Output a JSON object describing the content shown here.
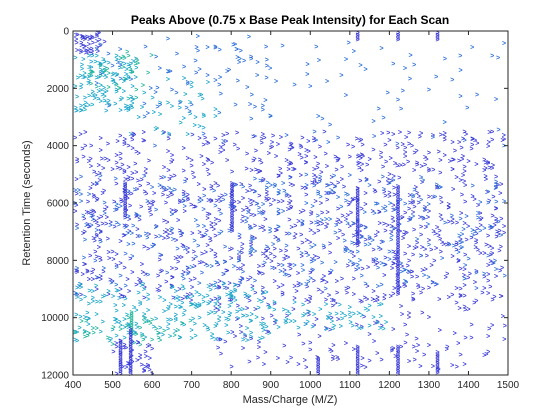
{
  "chart_data": {
    "type": "scatter",
    "title": "Peaks Above (0.75 x Base Peak Intensity) for Each Scan",
    "xlabel": "Mass/Charge (M/Z)",
    "ylabel": "Retention Time (seconds)",
    "xlim": [
      400,
      1500
    ],
    "ylim": [
      0,
      12000
    ],
    "y_reversed": true,
    "grid": false,
    "marker": ">",
    "x_ticks": [
      "400",
      "500",
      "600",
      "700",
      "800",
      "900",
      "1000",
      "1100",
      "1200",
      "1300",
      "1400",
      "1500"
    ],
    "y_ticks": [
      "0",
      "2000",
      "4000",
      "6000",
      "8000",
      "10000",
      "12000"
    ],
    "colors": {
      "blue": "#3a3bd6",
      "mid_blue": "#2b6fd8",
      "cyan": "#1aa6c9",
      "teal": "#22b59a",
      "green": "#39c07a"
    },
    "clusters": [
      {
        "x": [
          400,
          480
        ],
        "y": [
          0,
          800
        ],
        "n": 45,
        "c": "blue"
      },
      {
        "x": [
          400,
          560
        ],
        "y": [
          800,
          2800
        ],
        "n": 120,
        "c": "cyan"
      },
      {
        "x": [
          440,
          600
        ],
        "y": [
          600,
          2400
        ],
        "n": 35,
        "c": "teal"
      },
      {
        "x": [
          540,
          760
        ],
        "y": [
          1500,
          3600
        ],
        "n": 40,
        "c": "cyan"
      },
      {
        "x": [
          460,
          900
        ],
        "y": [
          0,
          3000
        ],
        "n": 60,
        "c": "mid_blue"
      },
      {
        "x": [
          600,
          1500
        ],
        "y": [
          400,
          4000
        ],
        "n": 90,
        "c": "mid_blue"
      },
      {
        "x": [
          400,
          1500
        ],
        "y": [
          3500,
          9400
        ],
        "n": 1100,
        "c": "blue"
      },
      {
        "x": [
          400,
          1500
        ],
        "y": [
          5000,
          9000
        ],
        "n": 380,
        "c": "mid_blue"
      },
      {
        "x": [
          400,
          900
        ],
        "y": [
          8800,
          10800
        ],
        "n": 220,
        "c": "cyan"
      },
      {
        "x": [
          760,
          1500
        ],
        "y": [
          9200,
          11800
        ],
        "n": 150,
        "c": "blue"
      },
      {
        "x": [
          880,
          1200
        ],
        "y": [
          9400,
          10400
        ],
        "n": 60,
        "c": "cyan"
      },
      {
        "x": [
          400,
          700
        ],
        "y": [
          10000,
          11000
        ],
        "n": 40,
        "c": "teal"
      },
      {
        "x": [
          500,
          600
        ],
        "y": [
          10800,
          12000
        ],
        "n": 40,
        "c": "blue"
      }
    ],
    "streaks": [
      {
        "x": 1120,
        "y": [
          0,
          300
        ],
        "c": "blue"
      },
      {
        "x": 1222,
        "y": [
          0,
          300
        ],
        "c": "blue"
      },
      {
        "x": 1322,
        "y": [
          0,
          300
        ],
        "c": "blue"
      },
      {
        "x": 532,
        "y": [
          5300,
          6500
        ],
        "c": "blue"
      },
      {
        "x": 802,
        "y": [
          5300,
          7000
        ],
        "c": "blue"
      },
      {
        "x": 1120,
        "y": [
          5500,
          7500
        ],
        "c": "blue"
      },
      {
        "x": 1222,
        "y": [
          5400,
          9200
        ],
        "c": "blue"
      },
      {
        "x": 548,
        "y": [
          9800,
          10600
        ],
        "c": "teal"
      },
      {
        "x": 520,
        "y": [
          10800,
          12000
        ],
        "c": "blue"
      },
      {
        "x": 546,
        "y": [
          10400,
          12000
        ],
        "c": "blue"
      },
      {
        "x": 1120,
        "y": [
          11000,
          12000
        ],
        "c": "blue"
      },
      {
        "x": 1222,
        "y": [
          11000,
          12000
        ],
        "c": "blue"
      },
      {
        "x": 1322,
        "y": [
          11200,
          12000
        ],
        "c": "blue"
      },
      {
        "x": 1020,
        "y": [
          11400,
          12000
        ],
        "c": "blue"
      }
    ]
  }
}
